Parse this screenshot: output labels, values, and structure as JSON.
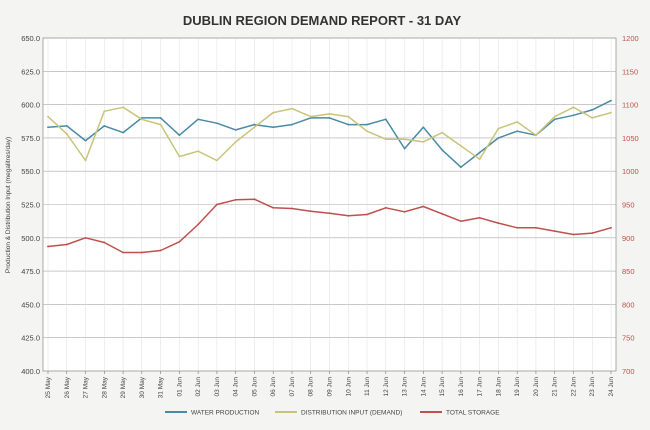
{
  "chart_data": {
    "type": "line",
    "title": "DUBLIN REGION DEMAND REPORT - 31 DAY",
    "ylabel_left": "Production & Distribution Input (megalitres/day)",
    "ylim_left": [
      400,
      650
    ],
    "yticks_left": [
      "400.0",
      "425.0",
      "450.0",
      "475.0",
      "500.0",
      "525.0",
      "550.0",
      "575.0",
      "600.0",
      "625.0",
      "650.0"
    ],
    "ylim_right": [
      700,
      1200
    ],
    "yticks_right": [
      "700",
      "750",
      "800",
      "850",
      "900",
      "950",
      "1000",
      "1050",
      "1100",
      "1150",
      "1200"
    ],
    "grid": true,
    "legend_position": "bottom",
    "categories": [
      "25 May",
      "26 May",
      "27 May",
      "28 May",
      "29 May",
      "30 May",
      "31 May",
      "01 Jun",
      "02 Jun",
      "03 Jun",
      "04 Jun",
      "05 Jun",
      "06 Jun",
      "07 Jun",
      "08 Jun",
      "09 Jun",
      "10 Jun",
      "11 Jun",
      "12 Jun",
      "13 Jun",
      "14 Jun",
      "15 Jun",
      "16 Jun",
      "17 Jun",
      "18 Jun",
      "19 Jun",
      "20 Jun",
      "21 Jun",
      "22 Jun",
      "23 Jun",
      "24 Jun"
    ],
    "series": [
      {
        "name": "WATER PRODUCTION",
        "color": "#4a8aa6",
        "axis": "left",
        "values": [
          583,
          584,
          573,
          584,
          579,
          590,
          590,
          577,
          589,
          586,
          581,
          585,
          583,
          585,
          590,
          590,
          585,
          585,
          589,
          567,
          583,
          566,
          553,
          564,
          575,
          580,
          577,
          589,
          592,
          596,
          603
        ]
      },
      {
        "name": "DISTRIBUTION INPUT (DEMAND)",
        "color": "#c8c47a",
        "axis": "left",
        "values": [
          591,
          578,
          558,
          595,
          598,
          589,
          585,
          561,
          565,
          558,
          572,
          583,
          594,
          597,
          591,
          593,
          591,
          580,
          574,
          574,
          572,
          579,
          569,
          559,
          582,
          587,
          577,
          591,
          598,
          590,
          594
        ]
      },
      {
        "name": "TOTAL STORAGE",
        "color": "#c0504d",
        "axis": "right",
        "values": [
          887,
          890,
          900,
          893,
          878,
          878,
          881,
          894,
          920,
          950,
          957,
          958,
          945,
          944,
          940,
          937,
          933,
          935,
          945,
          939,
          947,
          936,
          925,
          930,
          922,
          915,
          915,
          910,
          905,
          907,
          915
        ]
      }
    ]
  }
}
